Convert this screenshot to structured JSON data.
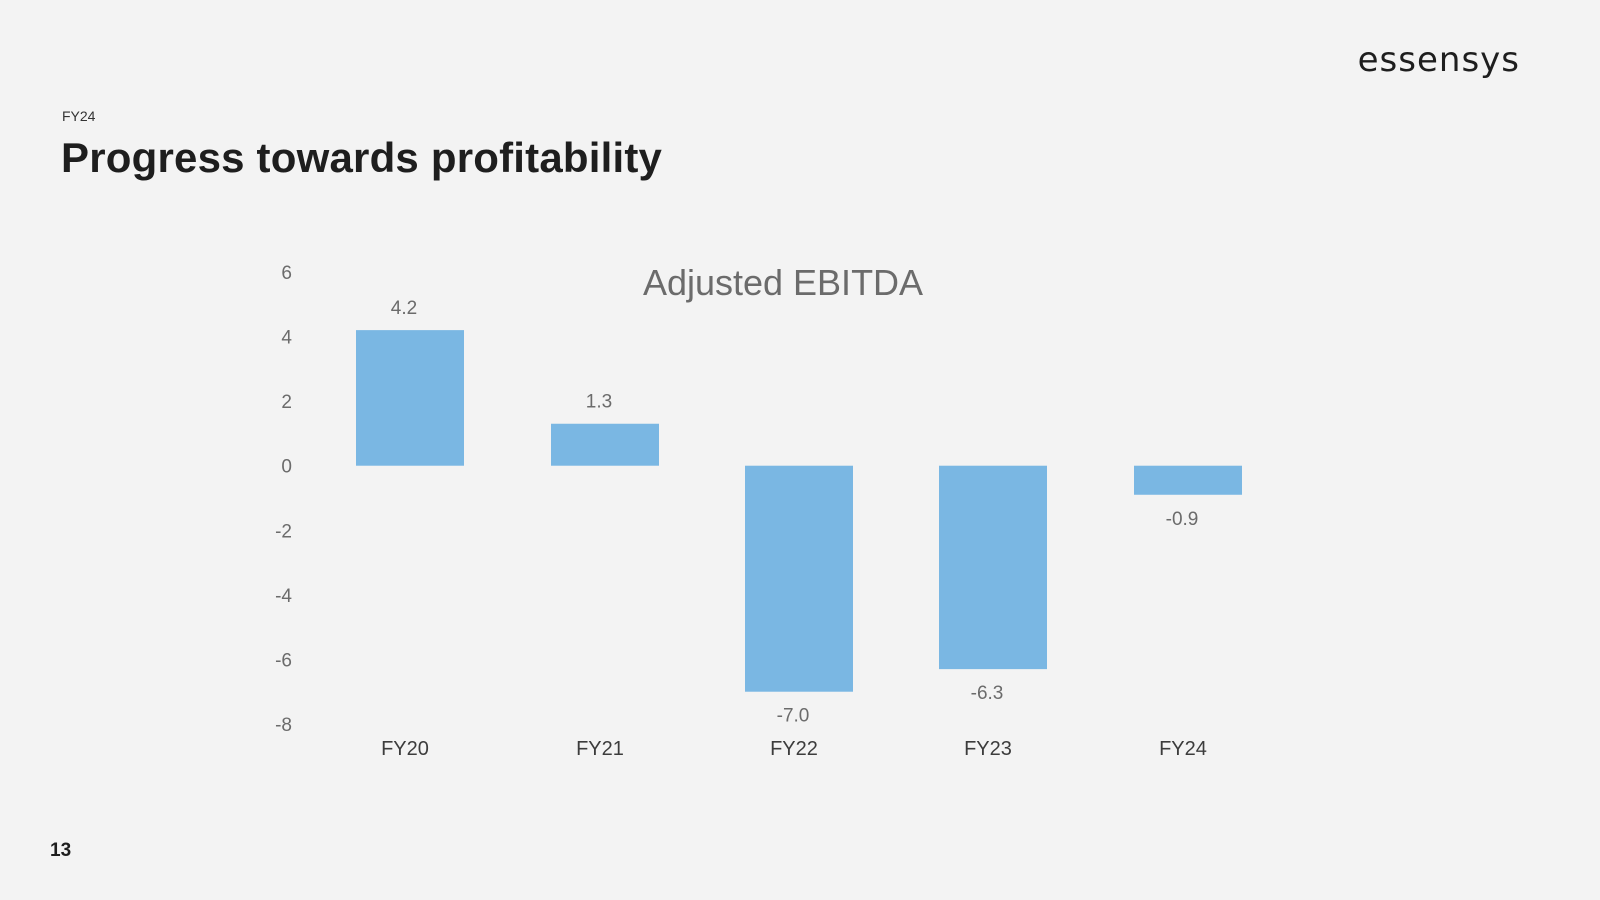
{
  "logo": {
    "text": "essensys"
  },
  "header": {
    "eyebrow": "FY24",
    "title": "Progress towards profitability"
  },
  "footer": {
    "page_number": "13"
  },
  "colors": {
    "bar": "#7ab7e3",
    "background": "#f3f3f3"
  },
  "chart_data": {
    "type": "bar",
    "title": "Adjusted EBITDA",
    "categories": [
      "FY20",
      "FY21",
      "FY22",
      "FY23",
      "FY24"
    ],
    "values": [
      4.2,
      1.3,
      -7.0,
      -6.3,
      -0.9
    ],
    "data_labels": [
      "4.2",
      "1.3",
      "-7.0",
      "-6.3",
      "-0.9"
    ],
    "xlabel": "",
    "ylabel": "",
    "ylim": [
      -8,
      6
    ],
    "yticks": [
      6,
      4,
      2,
      0,
      -2,
      -4,
      -6,
      -8
    ],
    "grid": false,
    "legend": "none"
  }
}
